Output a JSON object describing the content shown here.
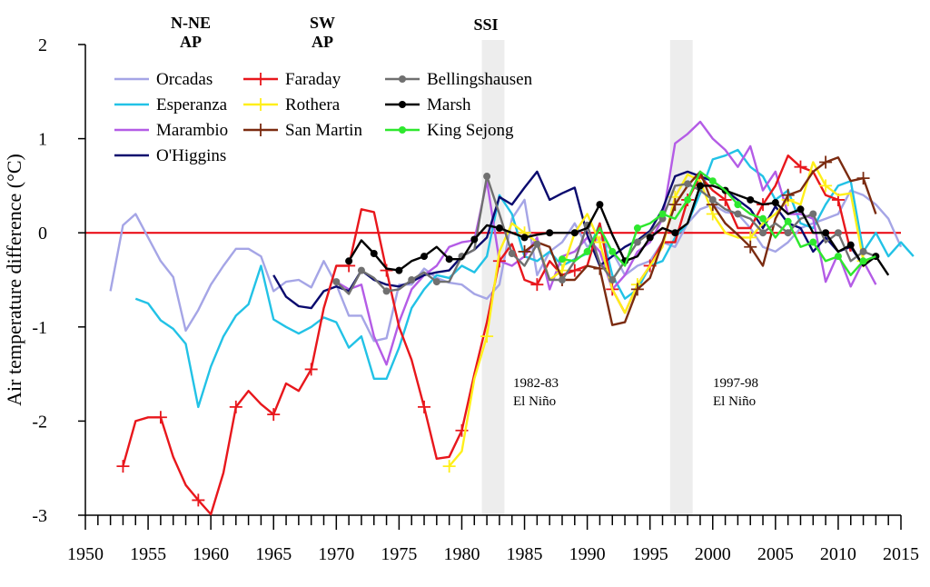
{
  "colors": {
    "background": "#ffffff",
    "axis": "#000000",
    "zero_line": "#e8000b",
    "band": "#ededed",
    "Orcadas": "#a5a5e6",
    "Esperanza": "#22c2e6",
    "Marambio": "#b45ce6",
    "O'Higgins": "#0a0a6e",
    "Faraday": "#e8171c",
    "Rothera": "#ffef1a",
    "San Martin": "#7b2b10",
    "Bellingshausen": "#707070",
    "Marsh": "#000000",
    "King Sejong": "#2ee82e"
  },
  "group_headers": [
    {
      "id": "nne",
      "lines": [
        "N-NE",
        "AP"
      ]
    },
    {
      "id": "sw",
      "lines": [
        "SW",
        "AP"
      ]
    },
    {
      "id": "ssi",
      "lines": [
        "SSI"
      ]
    }
  ],
  "chart_data": {
    "type": "line",
    "xlabel": "",
    "ylabel": "Air temperature difference (°C)",
    "xlim": [
      1950,
      2015
    ],
    "ylim": [
      -3,
      2
    ],
    "x_ticks": [
      1950,
      1955,
      1960,
      1965,
      1970,
      1975,
      1980,
      1985,
      1990,
      1995,
      2000,
      2005,
      2010,
      2015
    ],
    "y_ticks": [
      -3,
      -2,
      -1,
      0,
      1,
      2
    ],
    "reference_line": 0,
    "events": [
      {
        "label_lines": [
          "1982-83",
          "El Niño"
        ],
        "x_range": [
          1981.6,
          1983.4
        ]
      },
      {
        "label_lines": [
          "1997-98",
          "El Niño"
        ],
        "x_range": [
          1996.6,
          1998.4
        ]
      }
    ],
    "series": [
      {
        "name": "Orcadas",
        "marker": "none",
        "x_start": 1952,
        "values": [
          -0.62,
          0.08,
          0.2,
          -0.05,
          -0.3,
          -0.47,
          -1.04,
          -0.82,
          -0.55,
          -0.35,
          -0.17,
          -0.17,
          -0.25,
          -0.62,
          -0.52,
          -0.5,
          -0.58,
          -0.3,
          -0.55,
          -0.88,
          -0.88,
          -1.15,
          -1.12,
          -0.55,
          -0.55,
          -0.38,
          -0.48,
          -0.53,
          -0.55,
          -0.65,
          -0.7,
          -0.55,
          0.15,
          0.35,
          -0.45,
          -0.2,
          -0.1,
          0.1,
          -0.15,
          -0.05,
          -0.2,
          -0.45,
          -0.35,
          -0.3,
          -0.1,
          -0.15,
          0.1,
          0.25,
          0.3,
          0.22,
          0.2,
          0.05,
          -0.15,
          -0.2,
          -0.1,
          0.05,
          0.1,
          0.15,
          0.2,
          0.45,
          0.4,
          0.3,
          0.15,
          -0.15
        ]
      },
      {
        "name": "Esperanza",
        "marker": "none",
        "x_start": 1954,
        "values": [
          -0.7,
          -0.75,
          -0.93,
          -1.02,
          -1.18,
          -1.85,
          -1.42,
          -1.1,
          -0.88,
          -0.76,
          -0.35,
          -0.92,
          -1.0,
          -1.07,
          -1.0,
          -0.9,
          -0.95,
          -1.22,
          -1.1,
          -1.55,
          -1.55,
          -1.22,
          -0.8,
          -0.6,
          -0.45,
          -0.48,
          -0.35,
          -0.42,
          -0.25,
          0.4,
          0.2,
          -0.25,
          -0.3,
          -0.2,
          -0.35,
          -0.28,
          -0.22,
          0.1,
          -0.45,
          -0.7,
          -0.6,
          -0.35,
          -0.3,
          -0.05,
          0.1,
          0.42,
          0.78,
          0.82,
          0.88,
          0.7,
          0.6,
          0.35,
          0.45,
          0.1,
          0.05,
          0.3,
          0.5,
          0.55,
          -0.2,
          0.0,
          -0.25,
          -0.1,
          -0.25
        ]
      },
      {
        "name": "Marambio",
        "marker": "none",
        "x_start": 1970,
        "values": [
          -0.52,
          -0.6,
          -0.55,
          -1.1,
          -1.4,
          -0.95,
          -0.6,
          -0.45,
          -0.35,
          -0.15,
          -0.1,
          -0.08,
          0.55,
          -0.3,
          -0.35,
          -0.25,
          -0.05,
          -0.6,
          -0.25,
          -0.2,
          -0.05,
          -0.2,
          -0.6,
          -0.45,
          -0.2,
          -0.1,
          0.15,
          0.95,
          1.05,
          1.18,
          1.0,
          0.88,
          0.7,
          0.92,
          0.45,
          0.65,
          0.2,
          0.2,
          0.15,
          -0.52,
          -0.22,
          -0.57,
          -0.3,
          -0.55
        ]
      },
      {
        "name": "O'Higgins",
        "marker": "none",
        "x_start": 1965,
        "values": [
          -0.45,
          -0.68,
          -0.78,
          -0.8,
          -0.62,
          -0.57,
          -0.62,
          -0.4,
          -0.5,
          -0.55,
          -0.57,
          -0.52,
          -0.45,
          -0.42,
          -0.4,
          -0.25,
          -0.18,
          -0.05,
          0.38,
          0.3,
          0.48,
          0.65,
          0.35,
          0.42,
          0.48,
          -0.02,
          -0.35,
          -0.25,
          -0.15,
          -0.08,
          0.02,
          0.25,
          0.6,
          0.65,
          0.6,
          0.55,
          0.45,
          0.35,
          0.25,
          0.05,
          0.28,
          0.1,
          0.05,
          -0.2,
          -0.05,
          -0.2,
          -0.15,
          -0.35
        ]
      },
      {
        "name": "Faraday",
        "marker": "plus",
        "x_start": 1953,
        "values": [
          -2.48,
          -2.0,
          -1.96,
          -1.96,
          -2.38,
          -2.68,
          -2.84,
          -2.99,
          -2.55,
          -1.85,
          -1.68,
          -1.82,
          -1.93,
          -1.6,
          -1.68,
          -1.45,
          -0.8,
          -0.35,
          -0.35,
          0.25,
          0.22,
          -0.4,
          -1.0,
          -1.35,
          -1.85,
          -2.4,
          -2.38,
          -2.1,
          -1.5,
          -0.95,
          -0.3,
          -0.12,
          -0.5,
          -0.55,
          -0.3,
          -0.45,
          -0.4,
          -0.35,
          0.1,
          -0.6,
          -0.85,
          -0.55,
          -0.35,
          -0.1,
          -0.1,
          0.35,
          0.6,
          0.45,
          0.35,
          0.05,
          0.05,
          0.3,
          0.5,
          0.82,
          0.7,
          0.65,
          0.4,
          0.35,
          -0.2
        ]
      },
      {
        "name": "Rothera",
        "marker": "plus",
        "x_start": 1979,
        "values": [
          -2.48,
          -2.32,
          -1.55,
          -1.1,
          -0.2,
          0.1,
          0.0,
          -0.1,
          -0.5,
          -0.4,
          0.0,
          0.2,
          -0.1,
          -0.6,
          -0.85,
          -0.55,
          -0.35,
          -0.15,
          0.38,
          0.62,
          0.55,
          0.2,
          0.0,
          -0.05,
          -0.05,
          0.1,
          0.2,
          0.35,
          0.3,
          0.75,
          0.5,
          0.4,
          0.42,
          -0.3
        ]
      },
      {
        "name": "San Martin",
        "marker": "plus",
        "x_start": 1985,
        "values": [
          -0.2,
          -0.1,
          -0.15,
          -0.5,
          -0.5,
          -0.35,
          -0.38,
          -0.98,
          -0.95,
          -0.6,
          -0.48,
          -0.1,
          0.3,
          0.5,
          0.65,
          0.3,
          0.1,
          -0.02,
          -0.15,
          -0.35,
          0.15,
          0.4,
          0.45,
          0.65,
          0.75,
          0.8,
          0.55,
          0.58,
          0.2
        ]
      },
      {
        "name": "Bellingshausen",
        "marker": "circle",
        "x_start": 1970,
        "values": [
          -0.52,
          -0.65,
          -0.4,
          -0.48,
          -0.62,
          -0.6,
          -0.5,
          -0.42,
          -0.52,
          -0.52,
          -0.25,
          -0.18,
          0.6,
          0.2,
          -0.22,
          -0.35,
          -0.12,
          -0.5,
          -0.5,
          -0.3,
          0.08,
          -0.32,
          -0.5,
          -0.3,
          -0.1,
          0.0,
          0.15,
          0.5,
          0.52,
          0.45,
          0.35,
          0.25,
          0.2,
          0.15,
          0.0,
          0.1,
          0.0,
          0.15,
          0.2,
          -0.1,
          0.0,
          -0.3,
          -0.2,
          -0.25
        ]
      },
      {
        "name": "Marsh",
        "marker": "circle",
        "x_start": 1971,
        "values": [
          -0.3,
          -0.08,
          -0.22,
          -0.38,
          -0.4,
          -0.3,
          -0.25,
          -0.15,
          -0.28,
          -0.28,
          -0.07,
          0.08,
          0.05,
          0.0,
          -0.05,
          -0.02,
          0.0,
          0.0,
          0.0,
          0.05,
          0.3,
          -0.02,
          -0.3,
          -0.25,
          -0.05,
          0.05,
          0.0,
          0.1,
          0.5,
          0.5,
          0.45,
          0.4,
          0.35,
          0.3,
          0.32,
          0.2,
          0.25,
          0.0,
          0.0,
          -0.2,
          -0.13,
          -0.35,
          -0.25,
          -0.45
        ]
      },
      {
        "name": "King Sejong",
        "marker": "circle",
        "x_start": 1988,
        "values": [
          -0.28,
          -0.3,
          -0.2,
          0.05,
          -0.2,
          -0.35,
          0.05,
          0.1,
          0.2,
          0.15,
          0.35,
          0.65,
          0.55,
          0.45,
          0.3,
          0.2,
          0.15,
          -0.05,
          0.12,
          -0.15,
          -0.1,
          -0.3,
          -0.25,
          -0.45,
          -0.3,
          -0.25
        ]
      }
    ]
  }
}
